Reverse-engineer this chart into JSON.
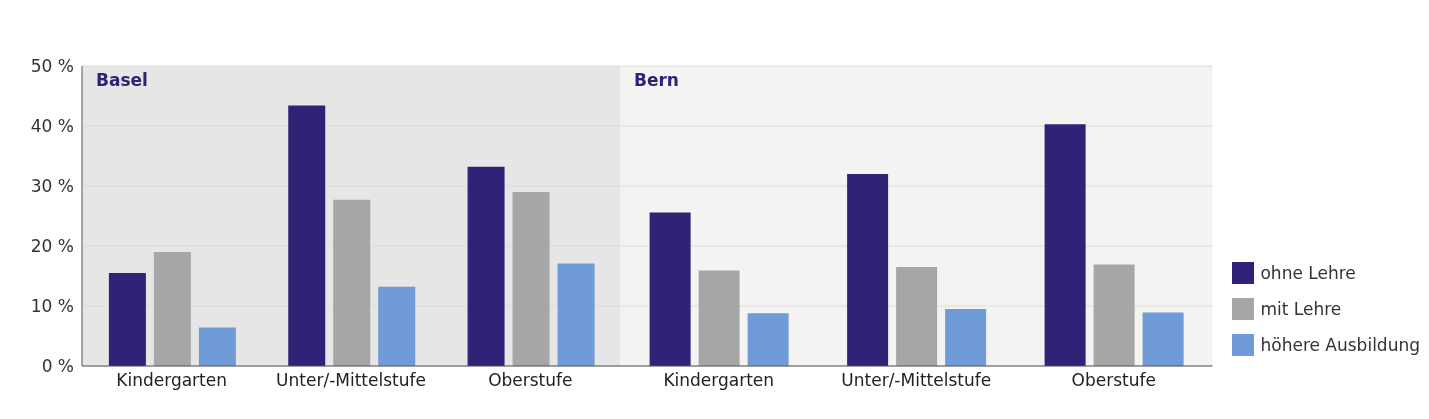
{
  "chart_data": [
    {
      "type": "bar",
      "title": "Basel",
      "categories": [
        "Kindergarten",
        "Unter/-Mittelstufe",
        "Oberstufe"
      ],
      "series": [
        {
          "color": "#2e2377",
          "values": [
            15.5,
            43.4,
            33.2
          ]
        },
        {
          "color": "#a6a6a6",
          "values": [
            19.0,
            27.7,
            29.0
          ]
        },
        {
          "color": "#6f9bd6",
          "values": [
            6.4,
            13.2,
            17.1
          ]
        }
      ],
      "ylim": [
        0,
        50
      ],
      "yticks": [
        {
          "value": 0,
          "label": "0 %"
        },
        {
          "value": 10,
          "label": "10 %"
        },
        {
          "value": 20,
          "label": "20 %"
        },
        {
          "value": 30,
          "label": "30 %"
        },
        {
          "value": 40,
          "label": "40 %"
        },
        {
          "value": 50,
          "label": "50 %"
        }
      ],
      "grid": "y",
      "legend": false
    },
    {
      "type": "bar",
      "title": "Bern",
      "categories": [
        "Kindergarten",
        "Unter/-Mittelstufe",
        "Oberstufe"
      ],
      "series": [
        {
          "name": "ohne Lehre",
          "color": "#2e2377",
          "values": [
            25.6,
            32.0,
            40.3
          ]
        },
        {
          "name": "mit Lehre",
          "color": "#a6a6a6",
          "values": [
            15.9,
            16.5,
            16.9
          ]
        },
        {
          "name": "höhere Ausbildung",
          "color": "#6f9bd6",
          "values": [
            8.8,
            9.5,
            8.9
          ]
        }
      ],
      "ylim": [
        0,
        50
      ],
      "grid": "y",
      "legend": "bottom right",
      "tick_labels": "x",
      "yticks": [
        0,
        10,
        20,
        30,
        40,
        50
      ]
    }
  ]
}
